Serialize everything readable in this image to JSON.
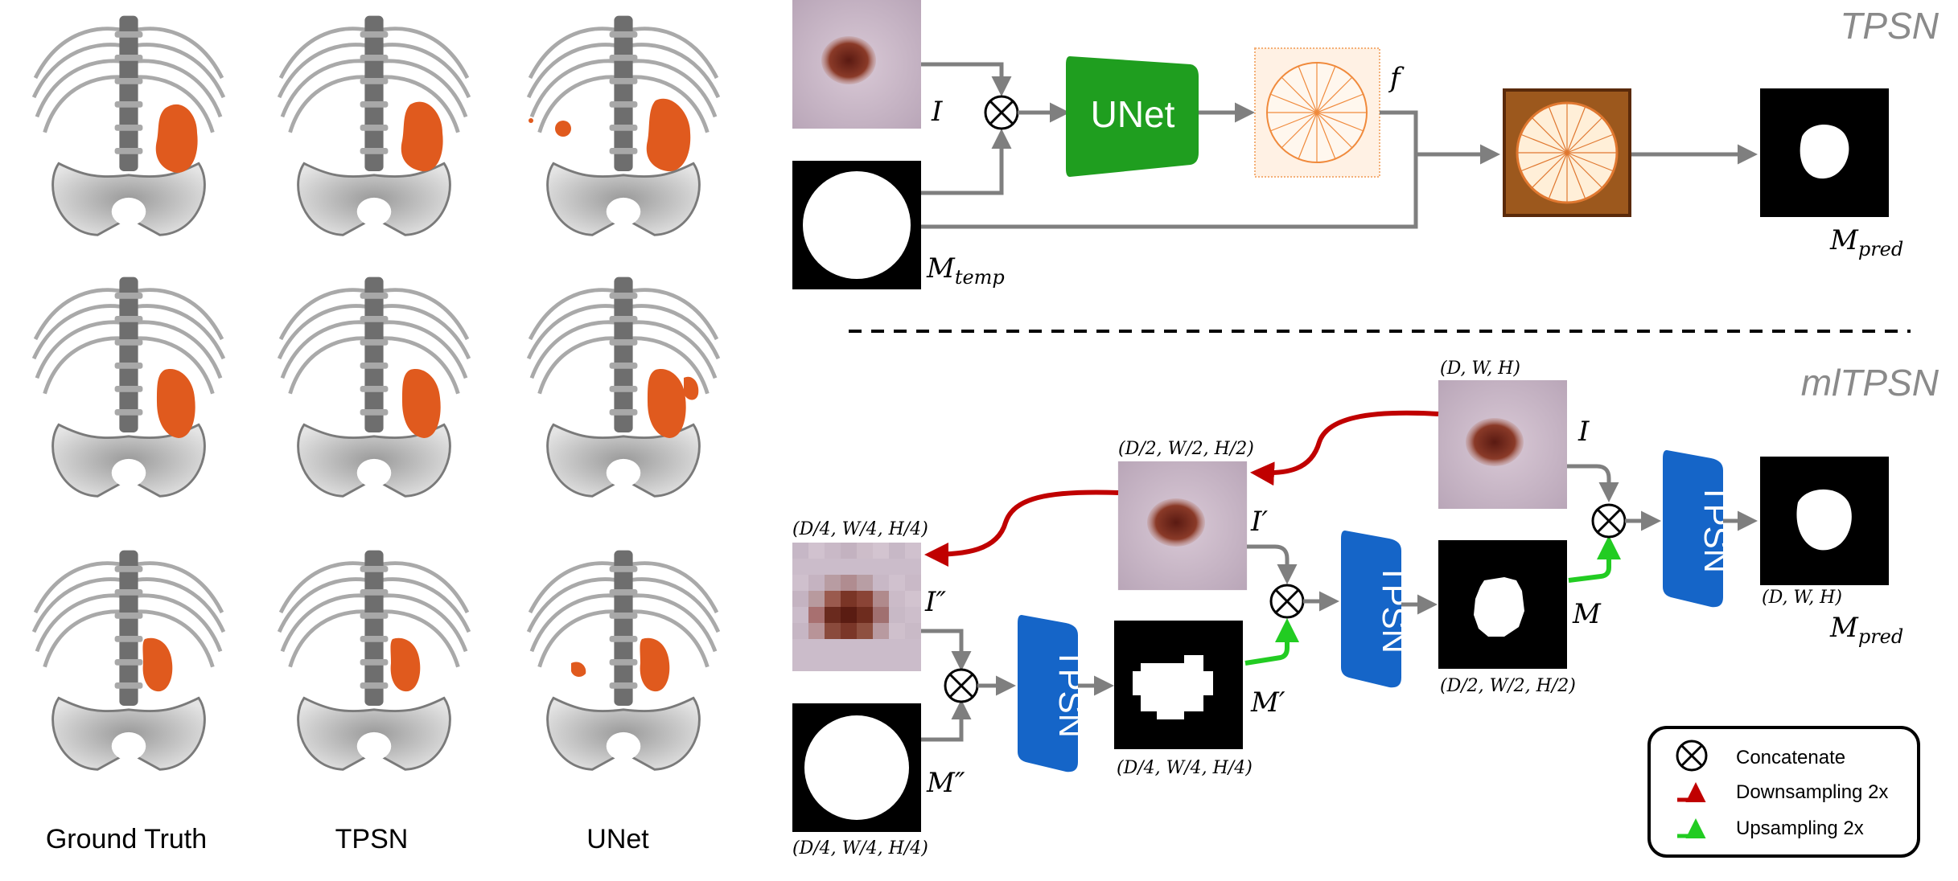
{
  "left_panel": {
    "columns": [
      "Ground Truth",
      "TPSN",
      "UNet"
    ]
  },
  "tpsn": {
    "title": "TPSN",
    "label_I": "I",
    "label_M_temp": "M",
    "label_M_temp_sub": "temp",
    "unet_label": "UNet",
    "label_f": "f",
    "label_M_pred": "M",
    "label_M_pred_sub": "pred"
  },
  "mltpsn": {
    "title": "mlTPSN",
    "dim_full_top": "(D, W, H)",
    "dim_half": "(D/2, W/2, H/2)",
    "dim_quarter": "(D/4, W/4, H/4)",
    "label_I": "I",
    "label_I1": "I′",
    "label_I2": "I″",
    "label_M": "M",
    "label_M1": "M′",
    "label_M2": "M″",
    "dim_M_half": "(D/2, W/2, H/2)",
    "dim_M1_quarter": "(D/4, W/4, H/4)",
    "dim_M2_quarter": "(D/4, W/4, H/4)",
    "dim_pred": "(D, W, H)",
    "label_M_pred": "M",
    "label_M_pred_sub": "pred",
    "tpsn_label": "TPSN"
  },
  "legend": {
    "concatenate": "Concatenate",
    "downsampling": "Downsampling 2x",
    "upsampling": "Upsampling 2x"
  },
  "colors": {
    "arrow_gray": "#7f7f7f",
    "unet_green": "#1f9e1f",
    "tpsn_blue": "#1565c8",
    "down_red": "#c00000",
    "up_green": "#22cc22",
    "organ_orange": "#e05a1e"
  }
}
